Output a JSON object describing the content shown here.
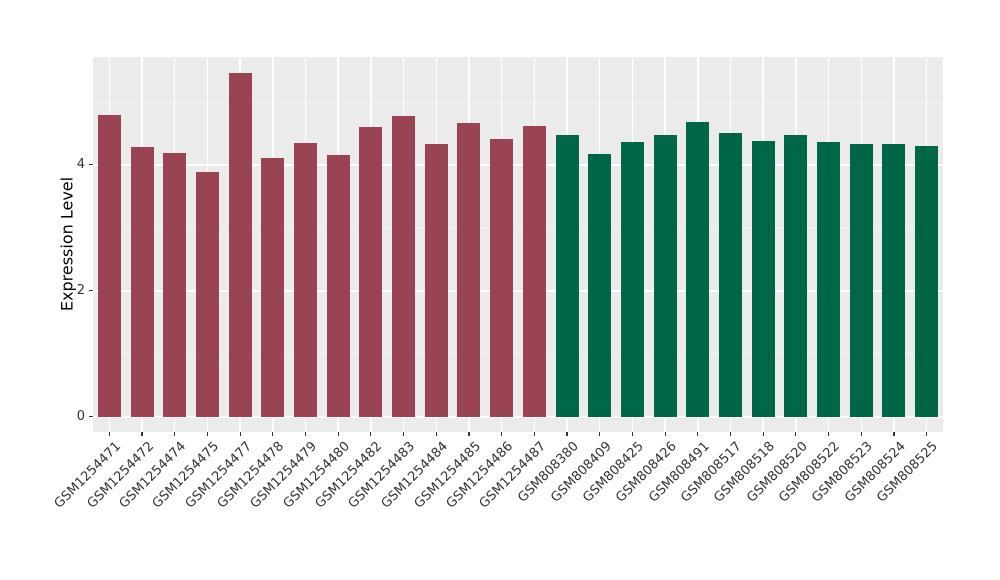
{
  "figure": {
    "background": "#ffffff",
    "panel_background": "#EBEBEB",
    "grid_major_color": "#FFFFFF",
    "grid_minor_color": "#F4F4F4",
    "tick_color": "#333333",
    "axis_text_color": "#333333",
    "axis_title_color": "#000000"
  },
  "chart_data": {
    "type": "bar",
    "title": "",
    "xlabel": "",
    "ylabel": "Expression Level",
    "ylim": [
      -0.27,
      5.72
    ],
    "y_ticks": [
      0,
      2,
      4
    ],
    "y_minor_ticks": [
      1,
      3,
      5
    ],
    "grid": true,
    "legend": "none",
    "group_colors": {
      "GSM1254xxx": "#9A4352",
      "GSM808xxx": "#006648"
    },
    "bars": [
      {
        "label": "GSM1254471",
        "value": 4.79,
        "color": "#9A4352"
      },
      {
        "label": "GSM1254472",
        "value": 4.29,
        "color": "#9A4352"
      },
      {
        "label": "GSM1254474",
        "value": 4.19,
        "color": "#9A4352"
      },
      {
        "label": "GSM1254475",
        "value": 3.89,
        "color": "#9A4352"
      },
      {
        "label": "GSM1254477",
        "value": 5.46,
        "color": "#9A4352"
      },
      {
        "label": "GSM1254478",
        "value": 4.11,
        "color": "#9A4352"
      },
      {
        "label": "GSM1254479",
        "value": 4.35,
        "color": "#9A4352"
      },
      {
        "label": "GSM1254480",
        "value": 4.16,
        "color": "#9A4352"
      },
      {
        "label": "GSM1254482",
        "value": 4.6,
        "color": "#9A4352"
      },
      {
        "label": "GSM1254483",
        "value": 4.78,
        "color": "#9A4352"
      },
      {
        "label": "GSM1254484",
        "value": 4.33,
        "color": "#9A4352"
      },
      {
        "label": "GSM1254485",
        "value": 4.67,
        "color": "#9A4352"
      },
      {
        "label": "GSM1254486",
        "value": 4.41,
        "color": "#9A4352"
      },
      {
        "label": "GSM1254487",
        "value": 4.62,
        "color": "#9A4352"
      },
      {
        "label": "GSM808380",
        "value": 4.48,
        "color": "#006648"
      },
      {
        "label": "GSM808409",
        "value": 4.18,
        "color": "#006648"
      },
      {
        "label": "GSM808425",
        "value": 4.36,
        "color": "#006648"
      },
      {
        "label": "GSM808426",
        "value": 4.48,
        "color": "#006648"
      },
      {
        "label": "GSM808491",
        "value": 4.68,
        "color": "#006648"
      },
      {
        "label": "GSM808517",
        "value": 4.51,
        "color": "#006648"
      },
      {
        "label": "GSM808518",
        "value": 4.38,
        "color": "#006648"
      },
      {
        "label": "GSM808520",
        "value": 4.48,
        "color": "#006648"
      },
      {
        "label": "GSM808522",
        "value": 4.36,
        "color": "#006648"
      },
      {
        "label": "GSM808523",
        "value": 4.33,
        "color": "#006648"
      },
      {
        "label": "GSM808524",
        "value": 4.33,
        "color": "#006648"
      },
      {
        "label": "GSM808525",
        "value": 4.3,
        "color": "#006648"
      }
    ]
  }
}
